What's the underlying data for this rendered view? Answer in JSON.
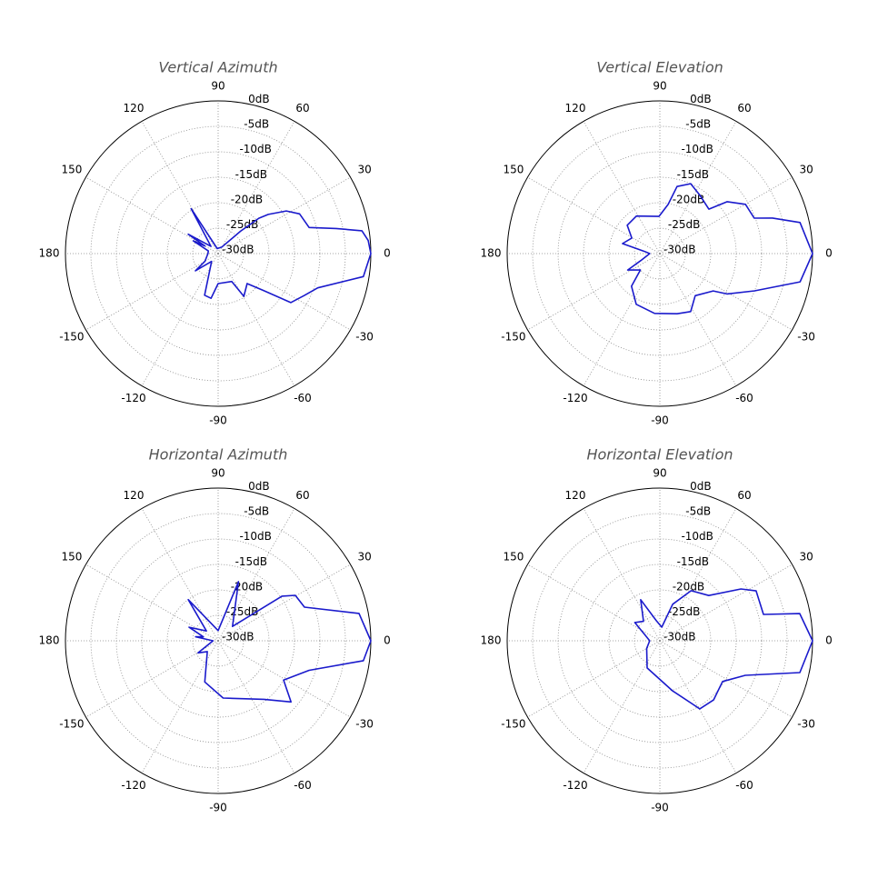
{
  "chart_data": [
    {
      "type": "polar",
      "title": "Vertical Azimuth",
      "color": "#1a1acc",
      "grid": true,
      "rlim": [
        -30,
        0
      ],
      "rticks": [
        {
          "value": 0,
          "label": "0dB"
        },
        {
          "value": -5,
          "label": "-5dB"
        },
        {
          "value": -10,
          "label": "-10dB"
        },
        {
          "value": -15,
          "label": "-15dB"
        },
        {
          "value": -20,
          "label": "-20dB"
        },
        {
          "value": -25,
          "label": "-25dB"
        },
        {
          "value": -30,
          "label": "-30dB"
        }
      ],
      "thetaticks": [
        0,
        30,
        60,
        90,
        120,
        150,
        180,
        -150,
        -120,
        -90,
        -60,
        -30
      ],
      "theta": [
        -150,
        -143,
        -130,
        -108,
        -99,
        -90,
        -64,
        -59,
        -46,
        -39,
        -34,
        -26,
        -19,
        -9,
        0,
        5,
        9,
        12,
        16,
        26,
        32,
        38,
        41,
        45,
        60,
        100,
        121,
        135,
        147,
        150,
        153,
        165,
        180
      ],
      "r": [
        -27,
        -24.4,
        -28,
        -21.4,
        -21.1,
        -24.1,
        -23.9,
        -20.2,
        -21.8,
        -18.4,
        -12.8,
        -11.2,
        -9.3,
        -1.1,
        0,
        -0.4,
        -1.4,
        -6.3,
        -11.4,
        -12.2,
        -14.2,
        -17.5,
        -19.4,
        -23.8,
        -28.5,
        -29,
        -19.7,
        -28,
        -23,
        -27,
        -24.5,
        -28,
        -28
      ]
    },
    {
      "type": "polar",
      "title": "Vertical Elevation",
      "color": "#1a1acc",
      "grid": true,
      "rlim": [
        -30,
        0
      ],
      "rticks": [
        {
          "value": 0,
          "label": "0dB"
        },
        {
          "value": -5,
          "label": "-5dB"
        },
        {
          "value": -10,
          "label": "-10dB"
        },
        {
          "value": -15,
          "label": "-15dB"
        },
        {
          "value": -20,
          "label": "-20dB"
        },
        {
          "value": -25,
          "label": "-25dB"
        },
        {
          "value": -30,
          "label": "-30dB"
        }
      ],
      "thetaticks": [
        0,
        30,
        60,
        90,
        120,
        150,
        180,
        -150,
        -120,
        -90,
        -60,
        -30
      ],
      "theta": [
        -160,
        -153,
        -140,
        -131,
        -115,
        -95,
        -74,
        -62,
        -50,
        -35,
        -31,
        -21.5,
        -11.4,
        0,
        12.5,
        17.5,
        20.6,
        29.9,
        37.6,
        42.2,
        55.5,
        66.2,
        75.6,
        80.5,
        91.4,
        122,
        139,
        151,
        165,
        172,
        180
      ],
      "r": [
        -26,
        -22.9,
        -25,
        -21.5,
        -19,
        -18.2,
        -17.7,
        -17.1,
        -19.2,
        -17.2,
        -14.6,
        -10,
        -1.9,
        0,
        -1.8,
        -6.8,
        -10.2,
        -10.6,
        -13.3,
        -17,
        -16.1,
        -15,
        -16.4,
        -20.2,
        -22.7,
        -21.3,
        -21.5,
        -23.7,
        -22.4,
        -27,
        -28
      ]
    },
    {
      "type": "polar",
      "title": "Horizontal Azimuth",
      "color": "#1a1acc",
      "grid": true,
      "rlim": [
        -30,
        0
      ],
      "rticks": [
        {
          "value": 0,
          "label": "0dB"
        },
        {
          "value": -5,
          "label": "-5dB"
        },
        {
          "value": -10,
          "label": "-10dB"
        },
        {
          "value": -15,
          "label": "-15dB"
        },
        {
          "value": -20,
          "label": "-20dB"
        },
        {
          "value": -25,
          "label": "-25dB"
        },
        {
          "value": -30,
          "label": "-30dB"
        }
      ],
      "thetaticks": [
        0,
        30,
        60,
        90,
        120,
        150,
        180,
        -150,
        -120,
        -90,
        -60,
        -30
      ],
      "theta": [
        -149,
        -135,
        -108,
        -85,
        -52,
        -40,
        -31,
        -18,
        -7.8,
        0,
        11,
        21.3,
        30.5,
        35,
        45,
        71,
        90,
        126,
        140,
        155,
        165,
        170,
        180
      ],
      "r": [
        -25.4,
        -27,
        -21.5,
        -18.7,
        -15.4,
        -11.3,
        -15,
        -11.2,
        -1.2,
        0,
        -1.8,
        -11.8,
        -12.4,
        -14.7,
        -26,
        -17.7,
        -28,
        -20,
        -27,
        -23.7,
        -27,
        -25.5,
        -29
      ]
    },
    {
      "type": "polar",
      "title": "Horizontal Elevation",
      "color": "#1a1acc",
      "grid": true,
      "rlim": [
        -30,
        0
      ],
      "rticks": [
        {
          "value": 0,
          "label": "0dB"
        },
        {
          "value": -5,
          "label": "-5dB"
        },
        {
          "value": -10,
          "label": "-10dB"
        },
        {
          "value": -15,
          "label": "-15dB"
        },
        {
          "value": -20,
          "label": "-20dB"
        },
        {
          "value": -25,
          "label": "-25dB"
        },
        {
          "value": -30,
          "label": "-30dB"
        }
      ],
      "thetaticks": [
        0,
        30,
        60,
        90,
        120,
        150,
        180,
        -150,
        -120,
        -90,
        -60,
        -30
      ],
      "theta": [
        -150,
        -115,
        -76,
        -59.6,
        -47.8,
        -33,
        -22,
        -12.8,
        0,
        11,
        14.3,
        27.4,
        32.6,
        42.8,
        58,
        70.7,
        82,
        100,
        115,
        130,
        144,
        160,
        180
      ],
      "r": [
        -27,
        -24.1,
        -19.9,
        -14.5,
        -14.3,
        -15.3,
        -11.9,
        -1.8,
        0,
        -2,
        -9,
        -8.7,
        -11.1,
        -16.9,
        -18.4,
        -22.4,
        -27.3,
        -26,
        -21.1,
        -25,
        -23.9,
        -27,
        -28
      ]
    }
  ]
}
